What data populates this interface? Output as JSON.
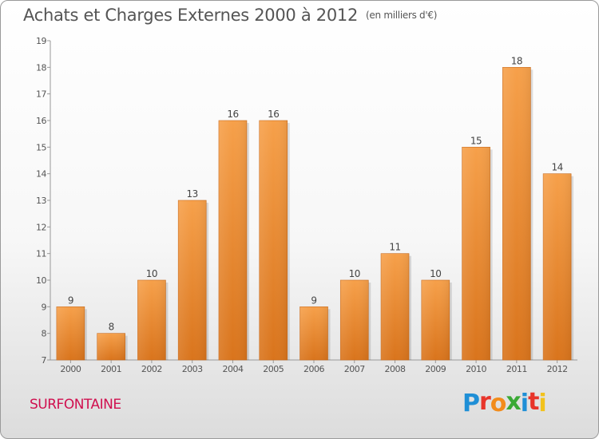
{
  "title": "Achats et Charges Externes 2000 à 2012",
  "subtitle": "(en milliers d'€)",
  "commune": "SURFONTAINE",
  "logo": {
    "letters": [
      "P",
      "r",
      "o",
      "x",
      "i",
      "t",
      "i"
    ],
    "colors": [
      "#1f8fd6",
      "#e8342a",
      "#f28c1c",
      "#3aa935",
      "#1f8fd6",
      "#e8342a",
      "#f2c21c"
    ]
  },
  "chart_data": {
    "type": "bar",
    "categories": [
      "2000",
      "2001",
      "2002",
      "2003",
      "2004",
      "2005",
      "2006",
      "2007",
      "2008",
      "2009",
      "2010",
      "2011",
      "2012"
    ],
    "values": [
      9,
      8,
      10,
      13,
      16,
      16,
      9,
      10,
      11,
      10,
      15,
      18,
      14
    ],
    "ylim": [
      7,
      19
    ],
    "yticks": [
      7,
      8,
      9,
      10,
      11,
      12,
      13,
      14,
      15,
      16,
      17,
      18,
      19
    ],
    "bar_color": "#f0902c",
    "grid": false,
    "data_labels": true
  }
}
